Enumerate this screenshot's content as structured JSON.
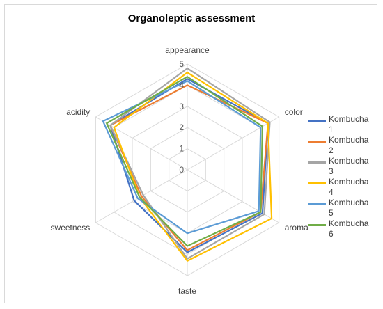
{
  "chart_data": {
    "type": "radar",
    "title": "Organoleptic assessment",
    "categories": [
      "appearance",
      "color",
      "aroma",
      "taste",
      "sweetness",
      "acidity"
    ],
    "scale": {
      "min": 0,
      "max": 5,
      "step": 1,
      "ticks": [
        "0",
        "1",
        "2",
        "3",
        "4",
        "5"
      ]
    },
    "series": [
      {
        "name": "Kombucha 1",
        "color": "#4472c4",
        "values": [
          4.3,
          4.4,
          4.1,
          3.9,
          2.9,
          4.2
        ]
      },
      {
        "name": "Kombucha 2",
        "color": "#ed7d31",
        "values": [
          4.0,
          4.4,
          4.0,
          3.8,
          2.5,
          4.2
        ]
      },
      {
        "name": "Kombucha 3",
        "color": "#a5a5a5",
        "values": [
          4.8,
          4.5,
          4.2,
          4.2,
          2.4,
          4.2
        ]
      },
      {
        "name": "Kombucha 4",
        "color": "#ffc000",
        "values": [
          4.6,
          4.4,
          4.6,
          4.3,
          2.6,
          4.0
        ]
      },
      {
        "name": "Kombucha 5",
        "color": "#5b9bd5",
        "values": [
          4.2,
          4.0,
          3.9,
          3.0,
          2.7,
          4.6
        ]
      },
      {
        "name": "Kombucha 6",
        "color": "#70ad47",
        "values": [
          4.4,
          4.1,
          4.0,
          3.6,
          2.6,
          4.4
        ]
      }
    ],
    "grid": true,
    "legend_position": "right"
  }
}
